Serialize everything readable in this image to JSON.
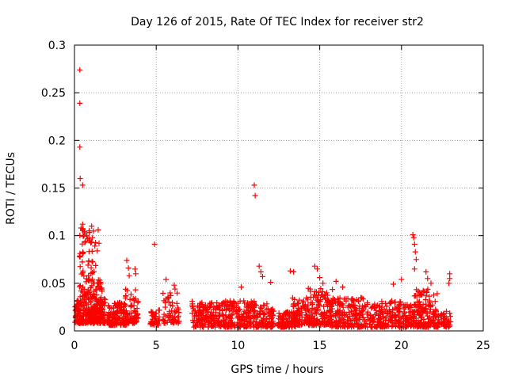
{
  "chart_data": {
    "type": "scatter",
    "title": "Day 126 of 2015, Rate Of TEC Index for receiver str2",
    "xlabel": "GPS time / hours",
    "ylabel": "ROTI / TECUs",
    "xlim": [
      0,
      25
    ],
    "ylim": [
      0,
      0.3
    ],
    "xticks": [
      0,
      5,
      10,
      15,
      20,
      25
    ],
    "xtick_labels": [
      "0",
      "5",
      "10",
      "15",
      "20",
      "25"
    ],
    "yticks": [
      0,
      0.05,
      0.1,
      0.15,
      0.2,
      0.25,
      0.3
    ],
    "ytick_labels": [
      "0",
      "0.05",
      "0.1",
      "0.15",
      "0.2",
      "0.25",
      "0.3"
    ],
    "grid": true,
    "marker": "+",
    "color": "#ff0000",
    "series": [
      {
        "name": "ROTI",
        "clusters": [
          {
            "x": [
              0.0,
              1.9
            ],
            "y": [
              0.008,
              0.035
            ],
            "n": 260
          },
          {
            "x": [
              0.3,
              1.4
            ],
            "y": [
              0.035,
              0.11
            ],
            "n": 90
          },
          {
            "x": [
              1.3,
              1.7
            ],
            "y": [
              0.02,
              0.055
            ],
            "n": 35
          },
          {
            "x": [
              2.0,
              3.2
            ],
            "y": [
              0.006,
              0.03
            ],
            "n": 120
          },
          {
            "x": [
              3.1,
              3.9
            ],
            "y": [
              0.008,
              0.045
            ],
            "n": 60
          },
          {
            "x": [
              4.6,
              5.2
            ],
            "y": [
              0.006,
              0.022
            ],
            "n": 40
          },
          {
            "x": [
              5.4,
              6.4
            ],
            "y": [
              0.008,
              0.04
            ],
            "n": 60
          },
          {
            "x": [
              7.2,
              9.2
            ],
            "y": [
              0.004,
              0.03
            ],
            "n": 170
          },
          {
            "x": [
              9.2,
              11.0
            ],
            "y": [
              0.004,
              0.032
            ],
            "n": 170
          },
          {
            "x": [
              11.0,
              12.2
            ],
            "y": [
              0.004,
              0.03
            ],
            "n": 110
          },
          {
            "x": [
              12.4,
              13.6
            ],
            "y": [
              0.004,
              0.02
            ],
            "n": 90
          },
          {
            "x": [
              13.3,
              14.3
            ],
            "y": [
              0.006,
              0.035
            ],
            "n": 80
          },
          {
            "x": [
              14.3,
              15.8
            ],
            "y": [
              0.006,
              0.045
            ],
            "n": 150
          },
          {
            "x": [
              15.6,
              18.0
            ],
            "y": [
              0.004,
              0.035
            ],
            "n": 200
          },
          {
            "x": [
              18.0,
              20.0
            ],
            "y": [
              0.004,
              0.032
            ],
            "n": 150
          },
          {
            "x": [
              20.0,
              21.8
            ],
            "y": [
              0.004,
              0.028
            ],
            "n": 150
          },
          {
            "x": [
              20.7,
              22.2
            ],
            "y": [
              0.02,
              0.045
            ],
            "n": 50
          },
          {
            "x": [
              21.8,
              23.0
            ],
            "y": [
              0.004,
              0.022
            ],
            "n": 80
          }
        ],
        "points": [
          [
            0.33,
            0.274
          ],
          [
            0.33,
            0.239
          ],
          [
            0.33,
            0.193
          ],
          [
            0.35,
            0.16
          ],
          [
            0.5,
            0.153
          ],
          [
            0.4,
            0.108
          ],
          [
            0.5,
            0.112
          ],
          [
            0.6,
            0.104
          ],
          [
            0.75,
            0.1
          ],
          [
            0.9,
            0.105
          ],
          [
            1.05,
            0.11
          ],
          [
            1.45,
            0.106
          ],
          [
            1.5,
            0.092
          ],
          [
            1.1,
            0.098
          ],
          [
            3.2,
            0.074
          ],
          [
            3.3,
            0.066
          ],
          [
            3.35,
            0.058
          ],
          [
            3.7,
            0.065
          ],
          [
            3.75,
            0.06
          ],
          [
            4.9,
            0.091
          ],
          [
            5.6,
            0.054
          ],
          [
            6.1,
            0.048
          ],
          [
            6.15,
            0.044
          ],
          [
            7.2,
            0.031
          ],
          [
            10.2,
            0.046
          ],
          [
            11.0,
            0.153
          ],
          [
            11.05,
            0.142
          ],
          [
            11.3,
            0.068
          ],
          [
            11.4,
            0.062
          ],
          [
            11.5,
            0.057
          ],
          [
            12.0,
            0.051
          ],
          [
            13.2,
            0.063
          ],
          [
            13.4,
            0.062
          ],
          [
            14.7,
            0.068
          ],
          [
            14.85,
            0.065
          ],
          [
            15.0,
            0.056
          ],
          [
            15.2,
            0.05
          ],
          [
            16.0,
            0.052
          ],
          [
            16.4,
            0.046
          ],
          [
            19.5,
            0.049
          ],
          [
            20.0,
            0.054
          ],
          [
            20.7,
            0.101
          ],
          [
            20.75,
            0.098
          ],
          [
            20.8,
            0.091
          ],
          [
            20.85,
            0.083
          ],
          [
            20.9,
            0.075
          ],
          [
            20.8,
            0.065
          ],
          [
            21.5,
            0.062
          ],
          [
            21.6,
            0.055
          ],
          [
            21.8,
            0.05
          ],
          [
            22.95,
            0.06
          ],
          [
            22.95,
            0.055
          ],
          [
            22.9,
            0.05
          ]
        ]
      }
    ]
  }
}
